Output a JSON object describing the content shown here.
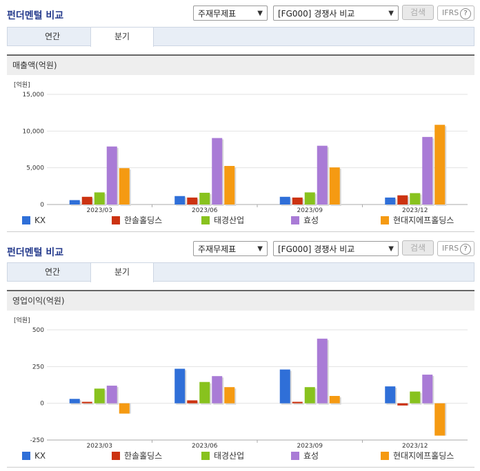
{
  "panels": [
    {
      "title": "펀더멘털 비교",
      "select1": "주재무제표",
      "select2": "[FG000] 경쟁사 비교",
      "search_label": "검색",
      "ifrs_label": "IFRS",
      "help_glyph": "?",
      "tabs": [
        "연간",
        "분기"
      ],
      "active_tab": "분기",
      "section_header": "매출액(억원)"
    },
    {
      "title": "펀더멘털 비교",
      "select1": "주재무제표",
      "select2": "[FG000] 경쟁사 비교",
      "search_label": "검색",
      "ifrs_label": "IFRS",
      "help_glyph": "?",
      "tabs": [
        "연간",
        "분기"
      ],
      "active_tab": "분기",
      "section_header": "영업이익(억원)"
    }
  ],
  "series_colors": [
    "#2f6fd8",
    "#cc3311",
    "#88c21e",
    "#a97bd6",
    "#f59a12"
  ],
  "chart_data": [
    {
      "type": "bar",
      "unit_label": "[억원]",
      "categories": [
        "2023/03",
        "2023/06",
        "2023/09",
        "2023/12"
      ],
      "ylim": [
        0,
        15000
      ],
      "yticks": [
        0,
        5000,
        10000,
        15000
      ],
      "ytick_labels": [
        "0",
        "5,000",
        "10,000",
        "15,000"
      ],
      "grid": true,
      "legend_position": "bottom",
      "series": [
        {
          "name": "KX",
          "values": [
            600,
            1150,
            1050,
            950
          ]
        },
        {
          "name": "한솔홀딩스",
          "values": [
            1050,
            950,
            950,
            1250
          ]
        },
        {
          "name": "태경산업",
          "values": [
            1650,
            1600,
            1650,
            1550
          ]
        },
        {
          "name": "효성",
          "values": [
            7900,
            9050,
            8000,
            9200
          ]
        },
        {
          "name": "현대지에프홀딩스",
          "values": [
            4950,
            5250,
            5050,
            10850
          ]
        }
      ]
    },
    {
      "type": "bar",
      "unit_label": "[억원]",
      "categories": [
        "2023/03",
        "2023/06",
        "2023/09",
        "2023/12"
      ],
      "ylim": [
        -250,
        500
      ],
      "yticks": [
        -250,
        0,
        250,
        500
      ],
      "ytick_labels": [
        "-250",
        "0",
        "250",
        "500"
      ],
      "grid": true,
      "legend_position": "bottom",
      "series": [
        {
          "name": "KX",
          "values": [
            30,
            235,
            230,
            115
          ]
        },
        {
          "name": "한솔홀딩스",
          "values": [
            10,
            20,
            10,
            -15
          ]
        },
        {
          "name": "태경산업",
          "values": [
            100,
            145,
            110,
            80
          ]
        },
        {
          "name": "효성",
          "values": [
            120,
            185,
            440,
            195
          ]
        },
        {
          "name": "현대지에프홀딩스",
          "values": [
            -70,
            110,
            50,
            -220
          ]
        }
      ]
    }
  ]
}
